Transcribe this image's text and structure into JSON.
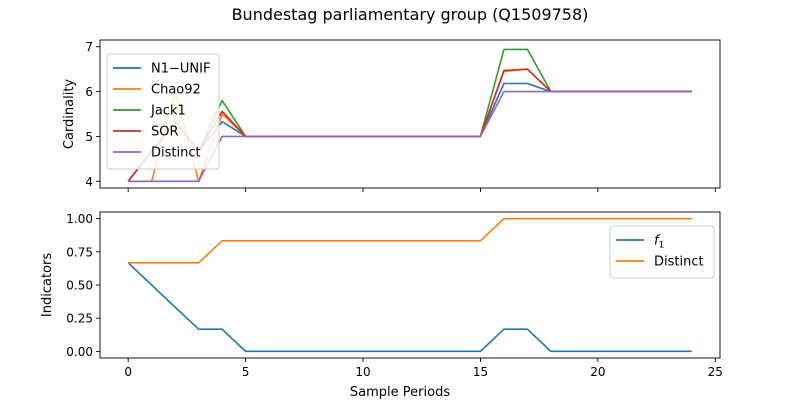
{
  "figure": {
    "title": "Bundestag parliamentary group (Q1509758)"
  },
  "chart_data": [
    {
      "type": "line",
      "ylabel": "Cardinality",
      "xlabel": "",
      "xlim": [
        -1.2,
        25.2
      ],
      "ylim": [
        3.85,
        7.15
      ],
      "xticks": [
        0,
        5,
        10,
        15,
        20,
        25
      ],
      "show_xticklabels": false,
      "yticks": [
        4,
        5,
        6,
        7
      ],
      "ytick_labels": [
        "4",
        "5",
        "6",
        "7"
      ],
      "legend_position": "upper-left",
      "grid": false,
      "x": [
        0,
        1,
        2,
        3,
        4,
        5,
        6,
        7,
        8,
        9,
        10,
        11,
        12,
        13,
        14,
        15,
        16,
        17,
        18,
        19,
        20,
        21,
        22,
        23,
        24
      ],
      "series": [
        {
          "name": "N1−UNIF",
          "color": "#1f77b4",
          "values": [
            4,
            4.67,
            5.33,
            4.67,
            5.33,
            5,
            5,
            5,
            5,
            5,
            5,
            5,
            5,
            5,
            5,
            5,
            6.18,
            6.18,
            6,
            6,
            6,
            6,
            6,
            6,
            6
          ]
        },
        {
          "name": "Chao92",
          "color": "#ff7f0e",
          "values": [
            4,
            4,
            6,
            4,
            5.5,
            5,
            5,
            5,
            5,
            5,
            5,
            5,
            5,
            5,
            5,
            5,
            6.45,
            6.5,
            6,
            6,
            6,
            6,
            6,
            6,
            6
          ]
        },
        {
          "name": "Jack1",
          "color": "#2ca02c",
          "values": [
            4,
            4.67,
            5.33,
            4.67,
            5.8,
            5,
            5,
            5,
            5,
            5,
            5,
            5,
            5,
            5,
            5,
            5,
            6.94,
            6.94,
            6,
            6,
            6,
            6,
            6,
            6,
            6
          ]
        },
        {
          "name": "SOR",
          "color": "#d62728",
          "values": [
            4,
            4.67,
            5.33,
            4.67,
            5.56,
            5,
            5,
            5,
            5,
            5,
            5,
            5,
            5,
            5,
            5,
            5,
            6.47,
            6.5,
            6,
            6,
            6,
            6,
            6,
            6,
            6
          ]
        },
        {
          "name": "Distinct",
          "color": "#9467bd",
          "values": [
            4,
            4,
            4,
            4,
            5,
            5,
            5,
            5,
            5,
            5,
            5,
            5,
            5,
            5,
            5,
            5,
            6,
            6,
            6,
            6,
            6,
            6,
            6,
            6,
            6
          ]
        }
      ]
    },
    {
      "type": "line",
      "ylabel": "Indicators",
      "xlabel": "Sample Periods",
      "xlim": [
        -1.2,
        25.2
      ],
      "ylim": [
        -0.05,
        1.05
      ],
      "xticks": [
        0,
        5,
        10,
        15,
        20,
        25
      ],
      "xtick_labels": [
        "0",
        "5",
        "10",
        "15",
        "20",
        "25"
      ],
      "show_xticklabels": true,
      "yticks": [
        0,
        0.25,
        0.5,
        0.75,
        1.0
      ],
      "ytick_labels": [
        "0.00",
        "0.25",
        "0.50",
        "0.75",
        "1.00"
      ],
      "legend_position": "upper-right",
      "grid": false,
      "x": [
        0,
        1,
        2,
        3,
        4,
        5,
        6,
        7,
        8,
        9,
        10,
        11,
        12,
        13,
        14,
        15,
        16,
        17,
        18,
        19,
        20,
        21,
        22,
        23,
        24
      ],
      "series": [
        {
          "name": "f",
          "subscript": "1",
          "color": "#1f77b4",
          "values": [
            0.667,
            0.5,
            0.333,
            0.167,
            0.167,
            0,
            0,
            0,
            0,
            0,
            0,
            0,
            0,
            0,
            0,
            0,
            0.167,
            0.167,
            0,
            0,
            0,
            0,
            0,
            0,
            0
          ]
        },
        {
          "name": "Distinct",
          "color": "#ff7f0e",
          "values": [
            0.667,
            0.667,
            0.667,
            0.667,
            0.833,
            0.833,
            0.833,
            0.833,
            0.833,
            0.833,
            0.833,
            0.833,
            0.833,
            0.833,
            0.833,
            0.833,
            1,
            1,
            1,
            1,
            1,
            1,
            1,
            1,
            1
          ]
        }
      ]
    }
  ]
}
